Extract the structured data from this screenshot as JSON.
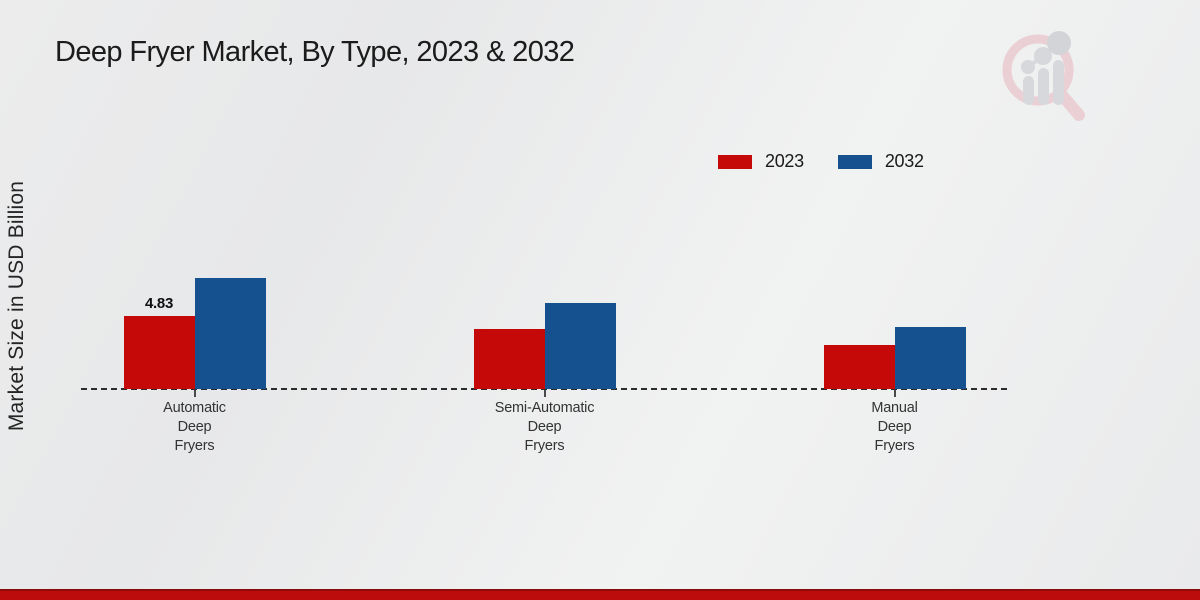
{
  "title": "Deep Fryer Market, By Type, 2023 & 2032",
  "y_axis_label": "Market Size in USD Billion",
  "watermark": {
    "icon": "magnifier-bar-chart-logo"
  },
  "footer": {
    "accent_color": "#bd0c0c"
  },
  "chart_data": {
    "type": "bar",
    "title": "Deep Fryer Market, By Type, 2023 & 2032",
    "ylabel": "Market Size in USD Billion",
    "xlabel": "",
    "categories": [
      "Automatic Deep Fryers",
      "Semi-Automatic Deep Fryers",
      "Manual Deep Fryers"
    ],
    "category_lines": [
      [
        "Automatic",
        "Deep",
        "Fryers"
      ],
      [
        "Semi-Automatic",
        "Deep",
        "Fryers"
      ],
      [
        "Manual",
        "Deep",
        "Fryers"
      ]
    ],
    "series": [
      {
        "name": "2023",
        "color": "#c50808",
        "values": [
          4.83,
          3.95,
          2.9
        ]
      },
      {
        "name": "2032",
        "color": "#15508f",
        "values": [
          7.35,
          5.7,
          4.1
        ]
      }
    ],
    "data_labels": [
      {
        "series": "2023",
        "category_index": 0,
        "text": "4.83"
      }
    ],
    "ylim": [
      0,
      8
    ],
    "grid": false,
    "baseline_style": "dashed",
    "legend_position": "top-right"
  }
}
